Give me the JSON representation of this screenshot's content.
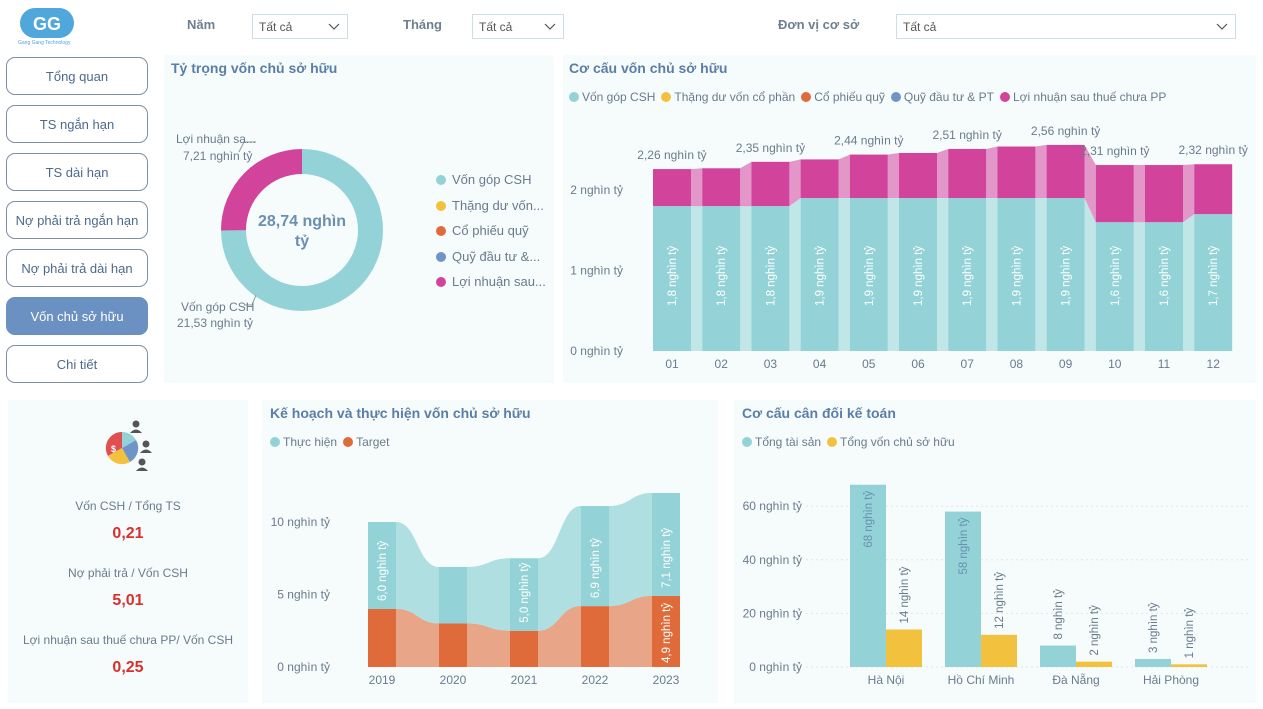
{
  "logo": {
    "initials": "GG",
    "caption": "Gang Gang Technology"
  },
  "filters": [
    {
      "label": "Năm",
      "value": "Tất cả"
    },
    {
      "label": "Tháng",
      "value": "Tất cả"
    },
    {
      "label": "Đơn vị cơ sở",
      "value": "Tất cả"
    }
  ],
  "nav": [
    {
      "label": "Tổng quan",
      "active": false
    },
    {
      "label": "TS ngắn hạn",
      "active": false
    },
    {
      "label": "TS dài hạn",
      "active": false
    },
    {
      "label": "Nợ phải trả ngắn hạn",
      "active": false
    },
    {
      "label": "Nợ phải trả dài hạn",
      "active": false
    },
    {
      "label": "Vốn chủ sở hữu",
      "active": true
    },
    {
      "label": "Chi tiết",
      "active": false
    }
  ],
  "colors": {
    "teal": "#93d3d7",
    "yellow": "#f2c23f",
    "orange": "#e06b3a",
    "blue": "#6e94c8",
    "magenta": "#d2449c",
    "red": "#d8302c"
  },
  "donut": {
    "title": "Tỷ trọng vốn chủ sở hữu",
    "center_label": [
      "28,74 nghìn",
      "tỷ"
    ],
    "label_top_name": "Lợi nhuận sa...",
    "label_top_value": "7,21 nghìn tỷ",
    "label_bottom_name": "Vốn góp CSH",
    "label_bottom_value": "21,53 nghìn tỷ",
    "legend": [
      "Vốn góp CSH",
      "Thặng dư vốn...",
      "Cổ phiếu quỹ",
      "Quỹ đầu tư &...",
      "Lợi nhuận sau..."
    ]
  },
  "structure": {
    "title": "Cơ cấu vốn chủ sở hữu",
    "legend": [
      "Vốn góp CSH",
      "Thặng dư vốn cổ phần",
      "Cổ phiếu quỹ",
      "Quỹ đầu tư & PT",
      "Lợi nhuận sau thuế chưa PP"
    ],
    "y_ticks": [
      "0 nghìn tỷ",
      "1 nghìn tỷ",
      "2 nghìn tỷ"
    ]
  },
  "kpis": [
    {
      "label": "Vốn CSH / Tổng TS",
      "value": "0,21"
    },
    {
      "label": "Nợ phải trả / Vốn CSH",
      "value": "5,01"
    },
    {
      "label": "Lợi nhuận sau thuế chưa PP/ Vốn CSH",
      "value": "0,25"
    }
  ],
  "plan": {
    "title": "Kế hoạch và thực hiện vốn chủ sở hữu",
    "legend": [
      "Thực hiện",
      "Target"
    ],
    "y_ticks": [
      "0 nghìn tỷ",
      "5 nghìn tỷ",
      "10 nghìn tỷ"
    ]
  },
  "balance": {
    "title": "Cơ cấu cân đối kế toán",
    "legend": [
      "Tổng tài sản",
      "Tổng vốn chủ sở hữu"
    ],
    "y_ticks": [
      "0 nghìn tỷ",
      "20 nghìn tỷ",
      "40 nghìn tỷ",
      "60 nghìn tỷ"
    ]
  },
  "chart_data": [
    {
      "type": "pie",
      "title": "Tỷ trọng vốn chủ sở hữu",
      "categories": [
        "Vốn góp CSH",
        "Lợi nhuận sau thuế chưa PP"
      ],
      "values": [
        21.53,
        7.21
      ],
      "unit": "nghìn tỷ"
    },
    {
      "type": "bar",
      "title": "Cơ cấu vốn chủ sở hữu",
      "stacked": true,
      "categories": [
        "01",
        "02",
        "03",
        "04",
        "05",
        "06",
        "07",
        "08",
        "09",
        "10",
        "11",
        "12"
      ],
      "series": [
        {
          "name": "Vốn góp CSH",
          "values": [
            1.8,
            1.8,
            1.8,
            1.9,
            1.9,
            1.9,
            1.9,
            1.9,
            1.9,
            1.6,
            1.6,
            1.7
          ],
          "labels": [
            "1,8 nghìn tỷ",
            "1,8 nghìn tỷ",
            "1,8 nghìn tỷ",
            "1,9 nghìn tỷ",
            "1,9 nghìn tỷ",
            "1,9 nghìn tỷ",
            "1,9 nghìn tỷ",
            "1,9 nghìn tỷ",
            "1,9 nghìn tỷ",
            "1,6 nghìn tỷ",
            "1,6 nghìn tỷ",
            "1,7 nghìn tỷ"
          ]
        },
        {
          "name": "Lợi nhuận sau thuế chưa PP",
          "values": [
            0.46,
            0.47,
            0.55,
            0.53,
            0.55,
            0.55,
            0.61,
            0.64,
            0.66,
            0.71,
            0.71,
            0.64
          ]
        }
      ],
      "totals": [
        2.26,
        2.27,
        2.35,
        2.38,
        2.44,
        2.46,
        2.51,
        2.54,
        2.56,
        2.31,
        2.31,
        2.32
      ],
      "total_labels": [
        "2,26 nghìn tỷ",
        "",
        "2,35 nghìn tỷ",
        "",
        "2,44 nghìn tỷ",
        "",
        "2,51 nghìn tỷ",
        "",
        "2,56 nghìn tỷ",
        "2,31 nghìn tỷ",
        "",
        "2,32 nghìn tỷ"
      ],
      "ylim": [
        0,
        2.6
      ]
    },
    {
      "type": "bar",
      "title": "Kế hoạch và thực hiện vốn chủ sở hữu",
      "categories": [
        "2019",
        "2020",
        "2021",
        "2022",
        "2023"
      ],
      "series": [
        {
          "name": "Thực hiện",
          "values": [
            6.0,
            3.9,
            5.0,
            6.9,
            7.1
          ],
          "labels": [
            "6,0 nghìn tỷ",
            "",
            "5,0 nghìn tỷ",
            "6,9 nghìn tỷ",
            "7,1 nghìn tỷ"
          ]
        },
        {
          "name": "Target",
          "values": [
            4.0,
            3.0,
            2.5,
            4.2,
            4.9
          ],
          "labels": [
            "",
            "",
            "",
            "",
            "4,9 nghìn tỷ"
          ]
        }
      ],
      "ylim": [
        0,
        13
      ]
    },
    {
      "type": "bar",
      "title": "Cơ cấu cân đối kế toán",
      "categories": [
        "Hà Nội",
        "Hồ Chí Minh",
        "Đà Nẵng",
        "Hải Phòng"
      ],
      "series": [
        {
          "name": "Tổng tài sản",
          "values": [
            68,
            58,
            8,
            3
          ],
          "labels": [
            "68 nghìn tỷ",
            "58 nghìn tỷ",
            "8 nghìn tỷ",
            "3 nghìn tỷ"
          ]
        },
        {
          "name": "Tổng vốn chủ sở hữu",
          "values": [
            14,
            12,
            2,
            1
          ],
          "labels": [
            "14 nghìn tỷ",
            "12 nghìn tỷ",
            "2 nghìn tỷ",
            "1 nghìn tỷ"
          ]
        }
      ],
      "ylim": [
        0,
        70
      ]
    }
  ]
}
